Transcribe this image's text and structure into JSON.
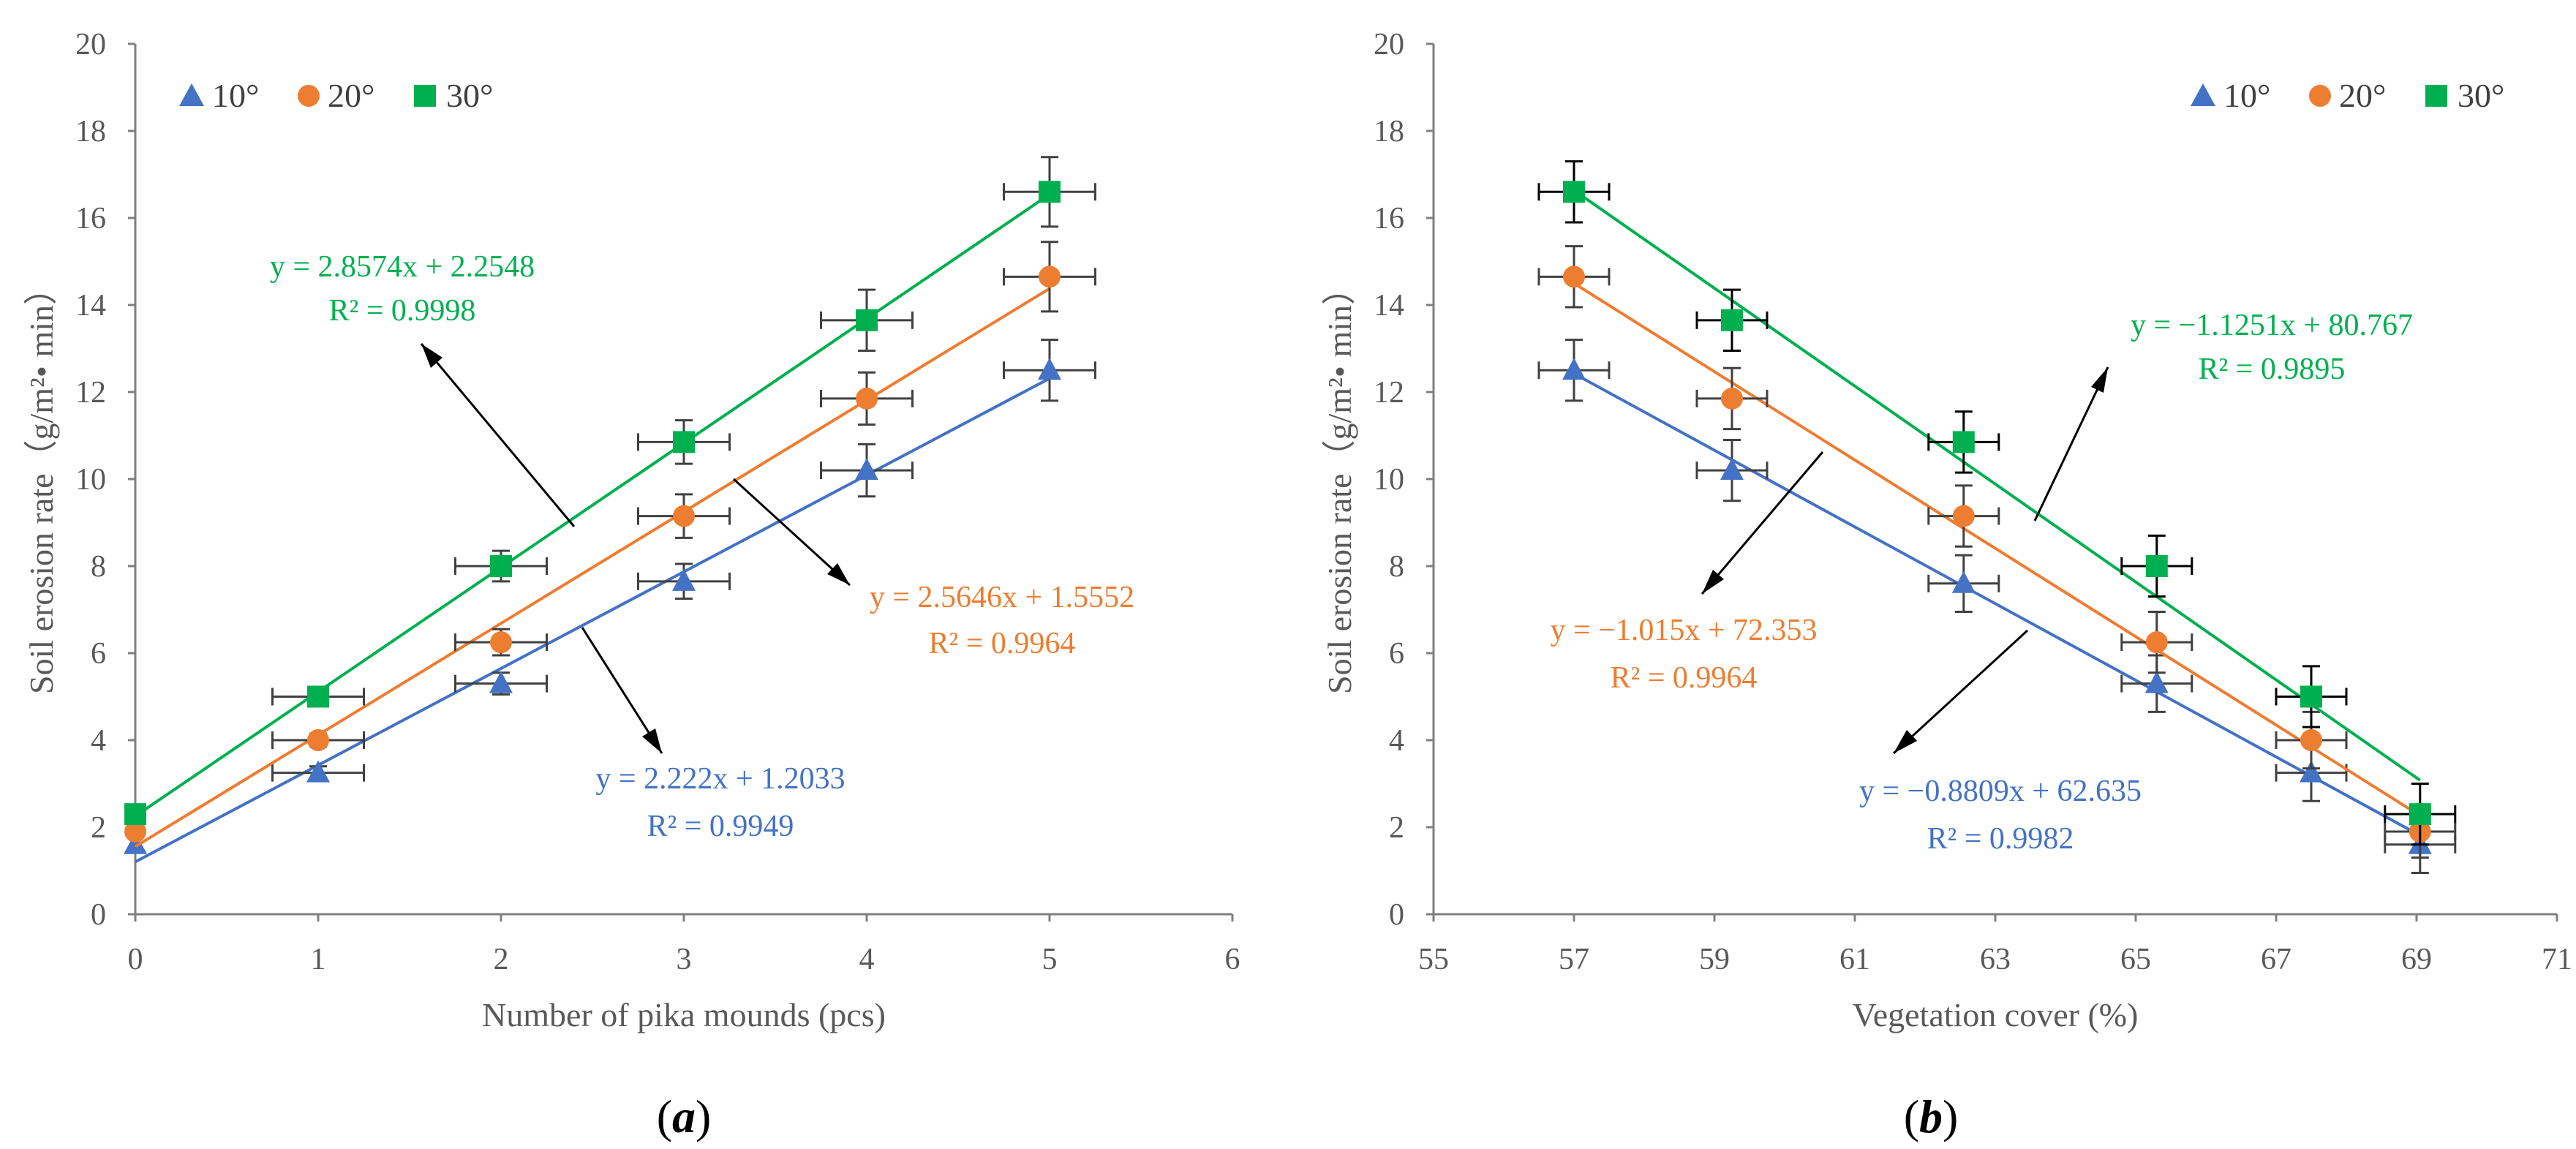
{
  "colors": {
    "s10": "#4472c4",
    "s20": "#ed7d31",
    "s30": "#00b050",
    "axis": "#7f7f7f",
    "errorbar": "#404040",
    "errorbar_b30": "#000000",
    "text": "#595959",
    "arrow": "#000000"
  },
  "chart_data": [
    {
      "type": "scatter",
      "panel_label": "(a)",
      "panel_letter": "a",
      "xlabel": "Number of pika mounds (pcs)",
      "ylabel": "Soil erosion rate（g/m²• min）",
      "xlim": [
        0,
        6
      ],
      "ylim": [
        0,
        20
      ],
      "xticks": [
        0,
        1,
        2,
        3,
        4,
        5,
        6
      ],
      "yticks": [
        0,
        2,
        4,
        6,
        8,
        10,
        12,
        14,
        16,
        18,
        20
      ],
      "grid": false,
      "legend_position": "top-left",
      "x_error": 0.25,
      "series": [
        {
          "key": "s10",
          "name": "10°",
          "marker": "triangle",
          "x": [
            0,
            1,
            2,
            3,
            4,
            5
          ],
          "y": [
            1.6,
            3.25,
            5.3,
            7.65,
            10.2,
            12.5
          ],
          "y_error": [
            0.1,
            0.15,
            0.25,
            0.4,
            0.6,
            0.7
          ],
          "fit": {
            "slope": 2.222,
            "intercept": 1.2033
          },
          "equation": "y = 2.222x + 1.2033",
          "r2": "R² = 0.9949"
        },
        {
          "key": "s20",
          "name": "20°",
          "marker": "circle",
          "x": [
            0,
            1,
            2,
            3,
            4,
            5
          ],
          "y": [
            1.9,
            4.0,
            6.25,
            9.15,
            11.85,
            14.65
          ],
          "y_error": [
            0.1,
            0.15,
            0.3,
            0.5,
            0.6,
            0.8
          ],
          "fit": {
            "slope": 2.5646,
            "intercept": 1.5552
          },
          "equation": "y = 2.5646x + 1.5552",
          "r2": "R² = 0.9964"
        },
        {
          "key": "s30",
          "name": "30°",
          "marker": "square",
          "x": [
            0,
            1,
            2,
            3,
            4,
            5
          ],
          "y": [
            2.3,
            5.0,
            8.0,
            10.85,
            13.65,
            16.6
          ],
          "y_error": [
            0.1,
            0.15,
            0.35,
            0.5,
            0.7,
            0.8
          ],
          "fit": {
            "slope": 2.8574,
            "intercept": 2.2548
          },
          "equation": "y = 2.8574x + 2.2548",
          "r2": "R² = 0.9998"
        }
      ]
    },
    {
      "type": "scatter",
      "panel_label": "(b)",
      "panel_letter": "b",
      "xlabel": "Vegetation cover (%)",
      "ylabel": "Soil erosion rate（g/m²• min）",
      "xlim": [
        55,
        71
      ],
      "ylim": [
        0,
        20
      ],
      "xticks": [
        55,
        57,
        59,
        61,
        63,
        65,
        67,
        69,
        71
      ],
      "yticks": [
        0,
        2,
        4,
        6,
        8,
        10,
        12,
        14,
        16,
        18,
        20
      ],
      "grid": false,
      "legend_position": "top-right",
      "x_error": 0.5,
      "series": [
        {
          "key": "s10",
          "name": "10°",
          "marker": "triangle",
          "x": [
            57,
            59.25,
            62.55,
            65.3,
            67.5,
            69.05
          ],
          "y": [
            12.5,
            10.2,
            7.6,
            5.3,
            3.25,
            1.6
          ],
          "y_error": [
            0.7,
            0.7,
            0.65,
            0.65,
            0.65,
            0.65
          ],
          "fit": {
            "slope": -0.8809,
            "intercept": 62.635
          },
          "equation": "y = −0.8809x + 62.635",
          "r2": "R² = 0.9982"
        },
        {
          "key": "s20",
          "name": "20°",
          "marker": "circle",
          "x": [
            57,
            59.25,
            62.55,
            65.3,
            67.5,
            69.05
          ],
          "y": [
            14.65,
            11.85,
            9.15,
            6.25,
            4.0,
            1.9
          ],
          "y_error": [
            0.7,
            0.7,
            0.7,
            0.7,
            0.65,
            0.6
          ],
          "fit": {
            "slope": -1.015,
            "intercept": 72.353
          },
          "equation": "y = −1.015x + 72.353",
          "r2": "R² = 0.9964"
        },
        {
          "key": "s30",
          "name": "30°",
          "marker": "square",
          "x": [
            57,
            59.25,
            62.55,
            65.3,
            67.5,
            69.05
          ],
          "y": [
            16.6,
            13.65,
            10.85,
            8.0,
            5.0,
            2.3
          ],
          "y_error": [
            0.7,
            0.7,
            0.7,
            0.7,
            0.7,
            0.7
          ],
          "fit": {
            "slope": -1.1251,
            "intercept": 80.767
          },
          "equation": "y = −1.1251x + 80.767",
          "r2": "R² = 0.9895"
        }
      ]
    }
  ]
}
